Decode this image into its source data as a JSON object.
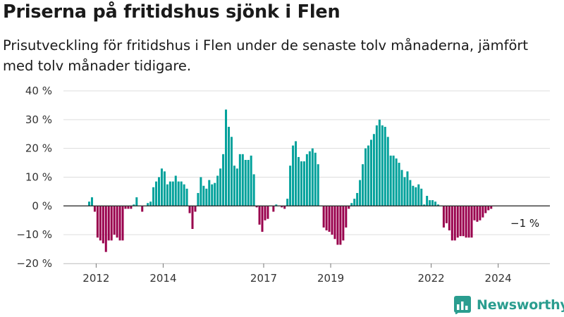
{
  "title": "Priserna på fritidshus sjönk i Flen",
  "subtitle": "Prisutveckling för fritidshus i Flen under de senaste tolv månaderna, jämfört med tolv månader tidigare.",
  "brand": {
    "name": "Newsworthy",
    "logo_icon": "bar-chart-logo-icon"
  },
  "colors": {
    "positive": "#00a19b",
    "negative": "#99004d",
    "grid": "#dddddd",
    "zero_line": "#333333"
  },
  "chart_data": {
    "type": "bar",
    "start": "2011-10",
    "y_unit": "%",
    "ylim": [
      -20,
      40
    ],
    "y_ticks": [
      {
        "value": 40,
        "label": "40 %"
      },
      {
        "value": 30,
        "label": "30 %"
      },
      {
        "value": 20,
        "label": "20 %"
      },
      {
        "value": 10,
        "label": "10 %"
      },
      {
        "value": 0,
        "label": "0 %"
      },
      {
        "value": -10,
        "label": "−10 %"
      },
      {
        "value": -20,
        "label": "−20 %"
      }
    ],
    "x_ticks": [
      {
        "month": "2012-01",
        "label": "2012"
      },
      {
        "month": "2014-01",
        "label": "2014"
      },
      {
        "month": "2017-01",
        "label": "2017"
      },
      {
        "month": "2019-01",
        "label": "2019"
      },
      {
        "month": "2022-01",
        "label": "2022"
      },
      {
        "month": "2024-01",
        "label": "2024"
      }
    ],
    "grid": true,
    "values": [
      1.5,
      3,
      -2,
      -11,
      -12,
      -13,
      -16,
      -12,
      -12,
      -10,
      -11,
      -12,
      -12,
      -1,
      -1,
      -1,
      0.5,
      3,
      0,
      -2,
      0,
      1,
      1.5,
      6.5,
      8.5,
      10,
      13,
      12,
      7.5,
      8.5,
      8.5,
      10.5,
      8.5,
      8.5,
      7.5,
      6,
      -2.5,
      -8,
      -2,
      4.5,
      10,
      7,
      6,
      9,
      7.5,
      8,
      10.5,
      13,
      18,
      33.5,
      27.5,
      24,
      14,
      13,
      18,
      18,
      16,
      16,
      17.5,
      11,
      -0.5,
      -6.5,
      -9,
      -5,
      -4.5,
      0,
      -2,
      0.5,
      0,
      -0.5,
      -1,
      2.5,
      14,
      21,
      22.5,
      17,
      15.5,
      15.5,
      18,
      19,
      20,
      18.5,
      14.5,
      0,
      -7.5,
      -8.5,
      -9,
      -10,
      -11.5,
      -13.5,
      -13.5,
      -12,
      -7.5,
      -1,
      1,
      2.5,
      4.5,
      9,
      14.5,
      20,
      21,
      23,
      25,
      28,
      30,
      28,
      27.5,
      24,
      17.5,
      17.5,
      16.5,
      15,
      12.5,
      10,
      12,
      9,
      7,
      6.5,
      7.5,
      6,
      0.5,
      3.5,
      2,
      2,
      1.5,
      0.5,
      0,
      -7.5,
      -6,
      -8.5,
      -12,
      -12,
      -11,
      -10.5,
      -10.5,
      -11,
      -11,
      -11,
      -5,
      -5.5,
      -5,
      -4,
      -2.5,
      -1.5,
      -1
    ],
    "annotation": {
      "text": "−1 %"
    }
  }
}
